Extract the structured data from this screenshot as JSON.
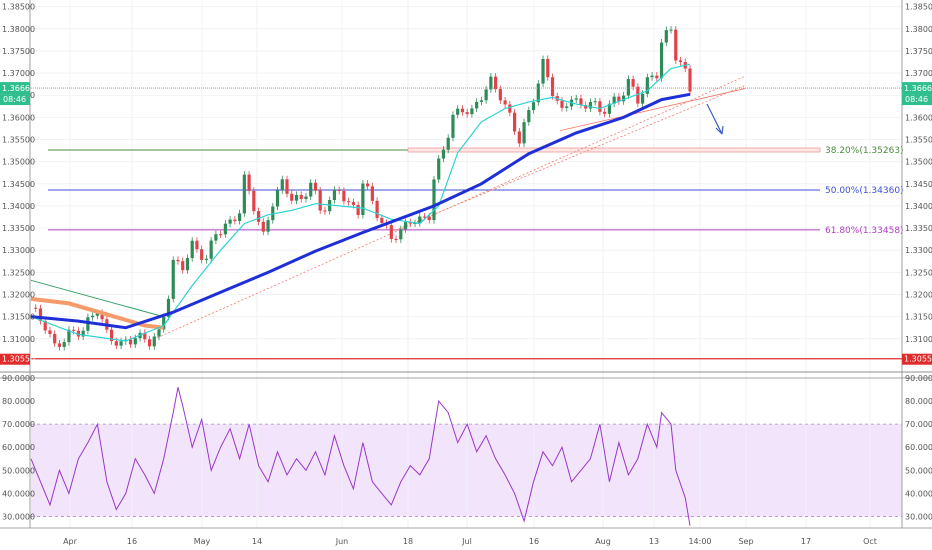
{
  "chart_data": [
    {
      "type": "candlestick",
      "title": "",
      "ylim": [
        1.3025,
        1.3865
      ],
      "y_ticks_left": [
        "1.38500",
        "1.38000",
        "1.37500",
        "1.37000",
        "1.36500",
        "1.36000",
        "1.35500",
        "1.35000",
        "1.34500",
        "1.34000",
        "1.33500",
        "1.33000",
        "1.32500",
        "1.32000",
        "1.31500",
        "1.31000"
      ],
      "y_ticks_right": [
        "1.38500",
        "1.38000",
        "1.37500",
        "1.37000",
        "1.36500",
        "1.36000",
        "1.35500",
        "1.35000",
        "1.34500",
        "1.34000",
        "1.33500",
        "1.33000",
        "1.32500",
        "1.32000",
        "1.31500",
        "1.31000"
      ],
      "x_ticks": [
        "Apr",
        "16",
        "May",
        "14",
        "Jun",
        "18",
        "Jul",
        "16",
        "Aug",
        "13",
        "14:00",
        "Sep",
        "17",
        "Oct"
      ],
      "current_price": {
        "value": 1.36661,
        "label": "1.36661",
        "countdown": "08:46"
      },
      "support_level": {
        "value": 1.3055,
        "label": "1.30550"
      },
      "fib_levels": [
        {
          "label": "38.20%(1.35263)",
          "value": 1.35263,
          "color": "#4c8b3e"
        },
        {
          "label": "50.00%(1.34360)",
          "value": 1.3436,
          "color": "#3d4fd6"
        },
        {
          "label": "61.80%(1.33458)",
          "value": 1.33458,
          "color": "#b13fc4"
        }
      ],
      "series": [
        {
          "role": "price-path",
          "kind": "close",
          "points": [
            [
              0,
              1.317
            ],
            [
              3,
              1.313
            ],
            [
              5,
              1.308
            ],
            [
              8,
              1.311
            ],
            [
              11,
              1.312
            ],
            [
              14,
              1.317
            ],
            [
              16,
              1.311
            ],
            [
              19,
              1.3085
            ],
            [
              22,
              1.3105
            ],
            [
              25,
              1.3095
            ],
            [
              27,
              1.311
            ],
            [
              29,
              1.32
            ],
            [
              30,
              1.327
            ],
            [
              32,
              1.3265
            ],
            [
              34,
              1.331
            ],
            [
              37,
              1.328
            ],
            [
              39,
              1.334
            ],
            [
              42,
              1.336
            ],
            [
              44,
              1.339
            ],
            [
              45,
              1.346
            ],
            [
              47,
              1.34
            ],
            [
              49,
              1.333
            ],
            [
              51,
              1.341
            ],
            [
              53,
              1.345
            ],
            [
              55,
              1.342
            ],
            [
              57,
              1.341
            ],
            [
              59,
              1.3455
            ],
            [
              61,
              1.339
            ],
            [
              63,
              1.341
            ],
            [
              65,
              1.344
            ],
            [
              67,
              1.34
            ],
            [
              69,
              1.339
            ],
            [
              70,
              1.3455
            ],
            [
              72,
              1.341
            ],
            [
              74,
              1.336
            ],
            [
              76,
              1.333
            ],
            [
              78,
              1.334
            ],
            [
              80,
              1.337
            ],
            [
              82,
              1.3365
            ],
            [
              84,
              1.338
            ],
            [
              85,
              1.346
            ],
            [
              87,
              1.353
            ],
            [
              89,
              1.36
            ],
            [
              91,
              1.362
            ],
            [
              93,
              1.361
            ],
            [
              95,
              1.365
            ],
            [
              97,
              1.368
            ],
            [
              99,
              1.365
            ],
            [
              101,
              1.36
            ],
            [
              103,
              1.355
            ],
            [
              105,
              1.361
            ],
            [
              107,
              1.368
            ],
            [
              108,
              1.372
            ],
            [
              110,
              1.366
            ],
            [
              112,
              1.361
            ],
            [
              114,
              1.365
            ],
            [
              116,
              1.362
            ],
            [
              118,
              1.364
            ],
            [
              120,
              1.361
            ],
            [
              122,
              1.363
            ],
            [
              124,
              1.364
            ],
            [
              126,
              1.368
            ],
            [
              128,
              1.364
            ],
            [
              130,
              1.368
            ],
            [
              132,
              1.37
            ],
            [
              133,
              1.377
            ],
            [
              135,
              1.38
            ],
            [
              136,
              1.374
            ],
            [
              138,
              1.37
            ],
            [
              139,
              1.3666
            ]
          ]
        },
        {
          "role": "moving-average",
          "color": "#1e2fd8",
          "points": [
            [
              0,
              1.315
            ],
            [
              10,
              1.314
            ],
            [
              20,
              1.3125
            ],
            [
              30,
              1.316
            ],
            [
              40,
              1.3205
            ],
            [
              50,
              1.325
            ],
            [
              60,
              1.3298
            ],
            [
              70,
              1.334
            ],
            [
              80,
              1.338
            ],
            [
              85,
              1.34
            ],
            [
              95,
              1.345
            ],
            [
              105,
              1.3518
            ],
            [
              115,
              1.3565
            ],
            [
              125,
              1.36
            ],
            [
              133,
              1.364
            ],
            [
              139,
              1.3652
            ]
          ]
        },
        {
          "role": "moving-average",
          "color": "#f59a6a",
          "points": [
            [
              0,
              1.319
            ],
            [
              8,
              1.318
            ],
            [
              16,
              1.3155
            ],
            [
              24,
              1.313
            ],
            [
              28,
              1.3125
            ]
          ]
        },
        {
          "role": "moving-average",
          "color": "#2fd2d2",
          "points": [
            [
              0,
              1.315
            ],
            [
              10,
              1.311
            ],
            [
              20,
              1.3095
            ],
            [
              28,
              1.313
            ],
            [
              34,
              1.322
            ],
            [
              40,
              1.33
            ],
            [
              45,
              1.336
            ],
            [
              50,
              1.338
            ],
            [
              55,
              1.339
            ],
            [
              60,
              1.3405
            ],
            [
              65,
              1.34
            ],
            [
              70,
              1.3395
            ],
            [
              76,
              1.337
            ],
            [
              82,
              1.336
            ],
            [
              86,
              1.34
            ],
            [
              90,
              1.352
            ],
            [
              95,
              1.359
            ],
            [
              100,
              1.362
            ],
            [
              105,
              1.3635
            ],
            [
              110,
              1.3645
            ],
            [
              115,
              1.363
            ],
            [
              120,
              1.362
            ],
            [
              125,
              1.364
            ],
            [
              130,
              1.366
            ],
            [
              135,
              1.371
            ],
            [
              139,
              1.372
            ]
          ]
        }
      ]
    },
    {
      "type": "line",
      "title": "",
      "ylim": [
        25,
        90
      ],
      "y_ticks_left": [
        "90.0000",
        "80.0000",
        "70.0000",
        "60.0000",
        "50.0000",
        "40.0000",
        "30.0000"
      ],
      "y_ticks_right": [
        "90.0000",
        "80.0000",
        "70.0000",
        "60.0000",
        "50.0000",
        "40.0000",
        "30.0000"
      ],
      "band": [
        30,
        70
      ],
      "series": [
        {
          "role": "oscillator",
          "color": "#9b36c6",
          "points": [
            [
              0,
              55
            ],
            [
              2,
              45
            ],
            [
              4,
              35
            ],
            [
              6,
              50
            ],
            [
              8,
              40
            ],
            [
              10,
              55
            ],
            [
              12,
              62
            ],
            [
              14,
              70
            ],
            [
              16,
              45
            ],
            [
              18,
              33
            ],
            [
              20,
              40
            ],
            [
              22,
              55
            ],
            [
              24,
              48
            ],
            [
              26,
              40
            ],
            [
              28,
              55
            ],
            [
              30,
              75
            ],
            [
              31,
              86
            ],
            [
              32,
              78
            ],
            [
              34,
              60
            ],
            [
              36,
              72
            ],
            [
              38,
              50
            ],
            [
              40,
              60
            ],
            [
              42,
              68
            ],
            [
              44,
              55
            ],
            [
              46,
              70
            ],
            [
              48,
              52
            ],
            [
              50,
              45
            ],
            [
              52,
              58
            ],
            [
              54,
              48
            ],
            [
              56,
              55
            ],
            [
              58,
              50
            ],
            [
              60,
              58
            ],
            [
              62,
              48
            ],
            [
              64,
              65
            ],
            [
              66,
              52
            ],
            [
              68,
              42
            ],
            [
              70,
              62
            ],
            [
              72,
              45
            ],
            [
              74,
              40
            ],
            [
              76,
              35
            ],
            [
              78,
              45
            ],
            [
              80,
              52
            ],
            [
              82,
              48
            ],
            [
              84,
              55
            ],
            [
              86,
              80
            ],
            [
              88,
              75
            ],
            [
              90,
              62
            ],
            [
              92,
              70
            ],
            [
              94,
              58
            ],
            [
              96,
              65
            ],
            [
              98,
              55
            ],
            [
              100,
              48
            ],
            [
              102,
              40
            ],
            [
              104,
              28
            ],
            [
              106,
              45
            ],
            [
              108,
              58
            ],
            [
              110,
              52
            ],
            [
              112,
              60
            ],
            [
              114,
              45
            ],
            [
              116,
              50
            ],
            [
              118,
              55
            ],
            [
              120,
              70
            ],
            [
              122,
              45
            ],
            [
              124,
              62
            ],
            [
              126,
              48
            ],
            [
              128,
              55
            ],
            [
              130,
              70
            ],
            [
              132,
              60
            ],
            [
              133,
              75
            ],
            [
              135,
              70
            ],
            [
              136,
              50
            ],
            [
              138,
              38
            ],
            [
              139,
              26
            ]
          ]
        }
      ]
    }
  ]
}
